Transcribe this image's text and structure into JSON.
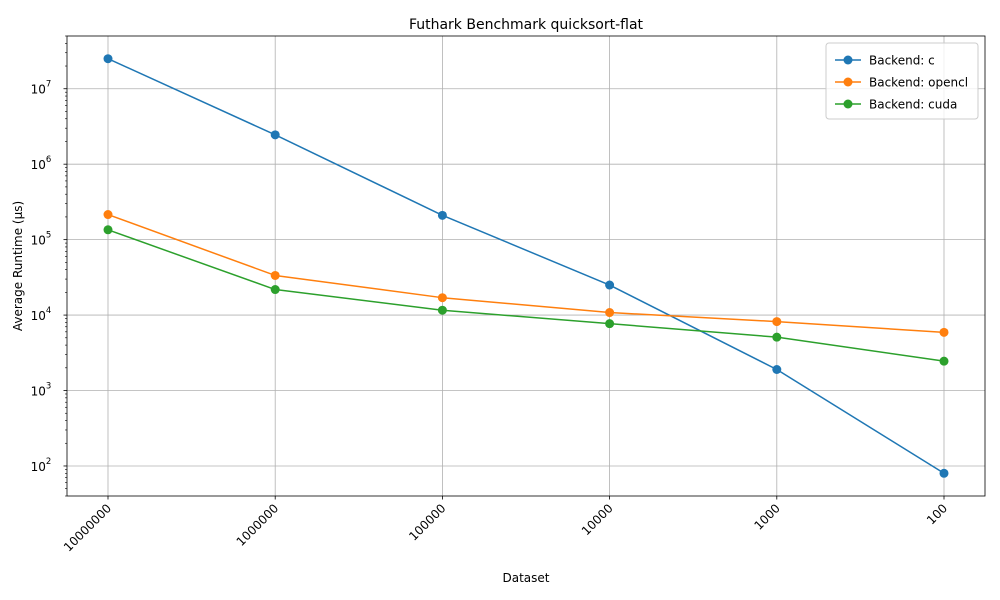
{
  "chart_data": {
    "type": "line",
    "title": "Futhark Benchmark quicksort-flat",
    "xlabel": "Dataset",
    "ylabel": "Average Runtime (μs)",
    "yscale": "log",
    "ylim": [
      40,
      50000000
    ],
    "grid": true,
    "legend_position": "top-right",
    "categories": [
      "10000000",
      "1000000",
      "100000",
      "10000",
      "1000",
      "100"
    ],
    "y_tick_exponents": [
      "2",
      "3",
      "4",
      "5",
      "6",
      "7"
    ],
    "y_tick_base": "10",
    "series": [
      {
        "name": "Backend: c",
        "color": "#1f77b4",
        "values": [
          25000000,
          2450000,
          210000,
          25000,
          1900,
          80
        ]
      },
      {
        "name": "Backend: opencl",
        "color": "#ff7f0e",
        "values": [
          215000,
          33500,
          17000,
          10800,
          8200,
          5900
        ]
      },
      {
        "name": "Backend: cuda",
        "color": "#2ca02c",
        "values": [
          135000,
          21800,
          11600,
          7700,
          5100,
          2450
        ]
      }
    ]
  }
}
